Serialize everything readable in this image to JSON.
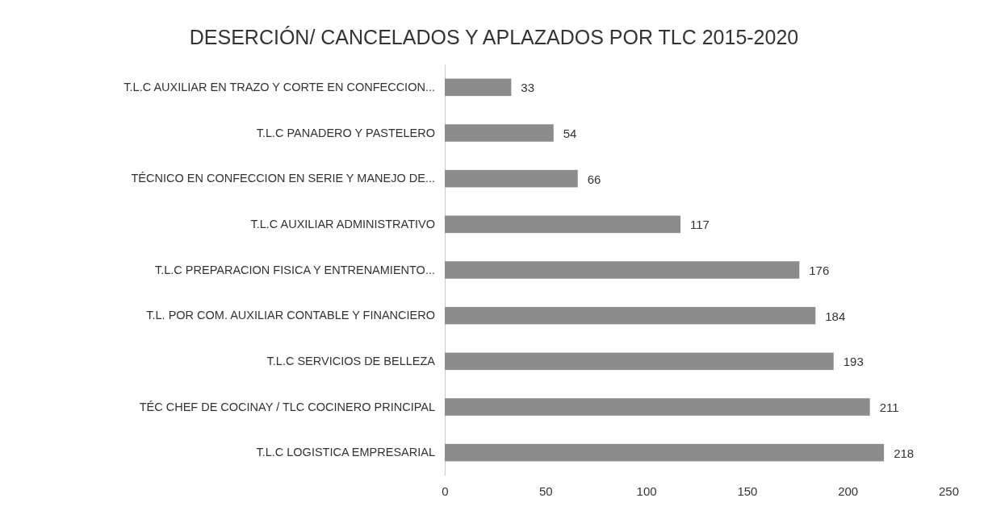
{
  "chart_data": {
    "type": "bar",
    "orientation": "horizontal",
    "title": "DESERCIÓN/ CANCELADOS Y APLAZADOS POR TLC 2015-2020",
    "categories": [
      "T.L.C AUXILIAR EN TRAZO Y CORTE EN CONFECCION...",
      "T.L.C PANADERO Y PASTELERO",
      "TÉCNICO EN CONFECCION EN SERIE Y MANEJO DE...",
      "T.L.C  AUXILIAR ADMINISTRATIVO",
      "T.L.C PREPARACION FISICA Y ENTRENAMIENTO...",
      "T.L. POR COM. AUXILIAR CONTABLE Y FINANCIERO",
      "T.L.C SERVICIOS DE BELLEZA",
      "TÉC  CHEF DE COCINAY / TLC COCINERO PRINCIPAL",
      "T.L.C LOGISTICA EMPRESARIAL"
    ],
    "values": [
      33,
      54,
      66,
      117,
      176,
      184,
      193,
      211,
      218
    ],
    "color": "#8c8c8c",
    "xlim": [
      0,
      250
    ],
    "xticks": [
      0,
      50,
      100,
      150,
      200,
      250
    ],
    "data_labels": true
  }
}
